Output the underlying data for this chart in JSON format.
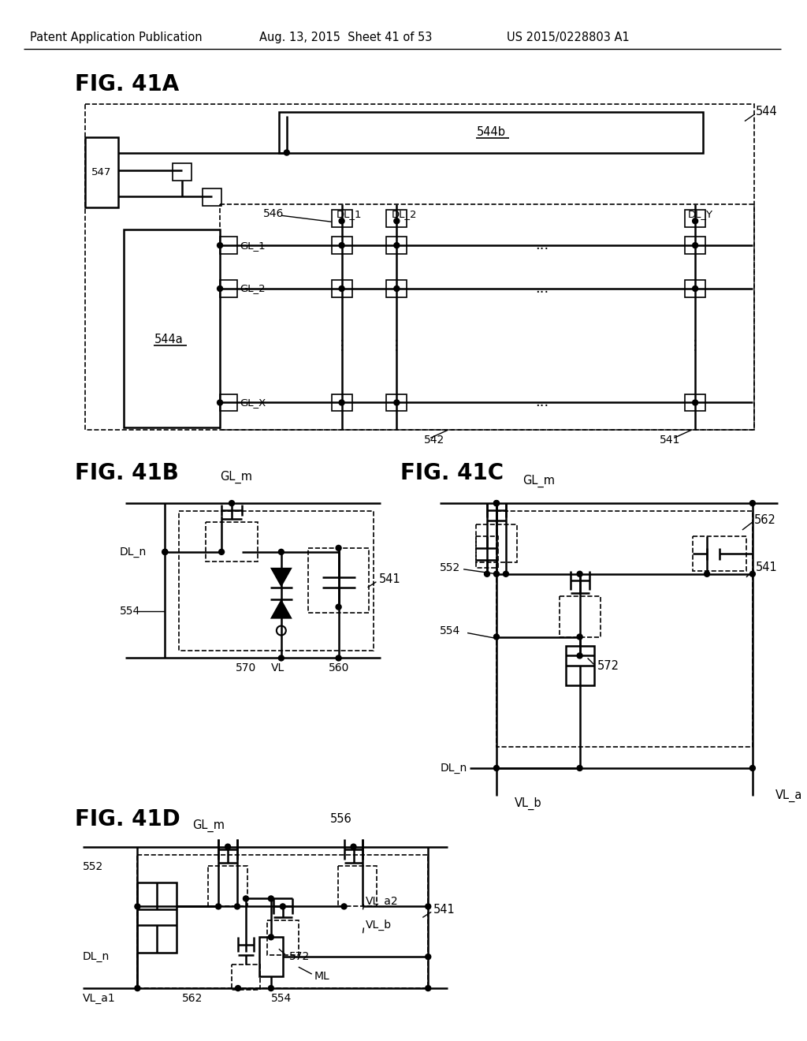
{
  "bg": "#ffffff",
  "hdr_l": "Patent Application Publication",
  "hdr_m": "Aug. 13, 2015  Sheet 41 of 53",
  "hdr_r": "US 2015/0228803 A1"
}
